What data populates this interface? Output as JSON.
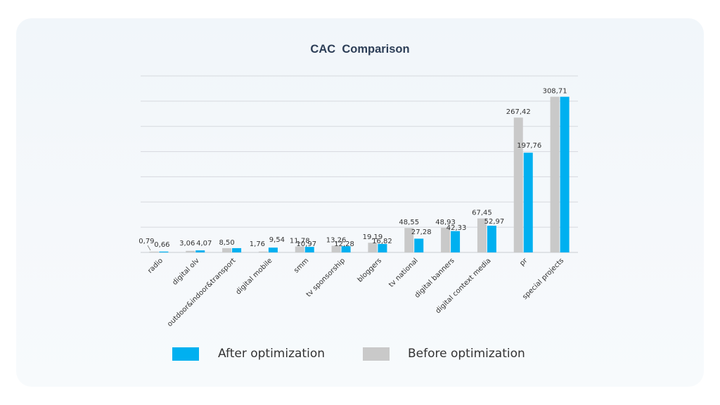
{
  "chart_data": {
    "type": "bar",
    "title": "CAC  Comparison",
    "categories": [
      "radio",
      "digital olv",
      "outdoor&indoor&transport",
      "digital mobile",
      "smm",
      "tv sponsorship",
      "bloggers",
      "tv national",
      "digital banners",
      "digital context media",
      "pr",
      "special projects"
    ],
    "series": [
      {
        "name": "Before optimization",
        "color": "#c9c9c9",
        "values": [
          0.79,
          3.06,
          8.5,
          1.76,
          11.78,
          13.26,
          19.19,
          48.55,
          48.93,
          67.45,
          267.42,
          308.71
        ],
        "labels": [
          "0,79",
          "3,06",
          "8,50",
          "1,76",
          "11,78",
          "13,26",
          "19,19",
          "48,55",
          "48,93",
          "67,45",
          "267,42",
          "308,71"
        ]
      },
      {
        "name": "After optimization",
        "color": "#00b0f0",
        "values": [
          0.66,
          4.07,
          8.5,
          9.54,
          10.97,
          12.28,
          16.82,
          27.28,
          42.33,
          52.97,
          197.76,
          308.71
        ],
        "labels": [
          "0,66",
          "4,07",
          "",
          "9,54",
          "10,97",
          "12,28",
          "16,82",
          "27,28",
          "42,33",
          "52,97",
          "197,76",
          ""
        ]
      }
    ],
    "ylim": [
      0,
      350
    ],
    "grid": true,
    "legend": {
      "position": "bottom",
      "entries": [
        "After optimization",
        "Before optimization"
      ]
    }
  }
}
